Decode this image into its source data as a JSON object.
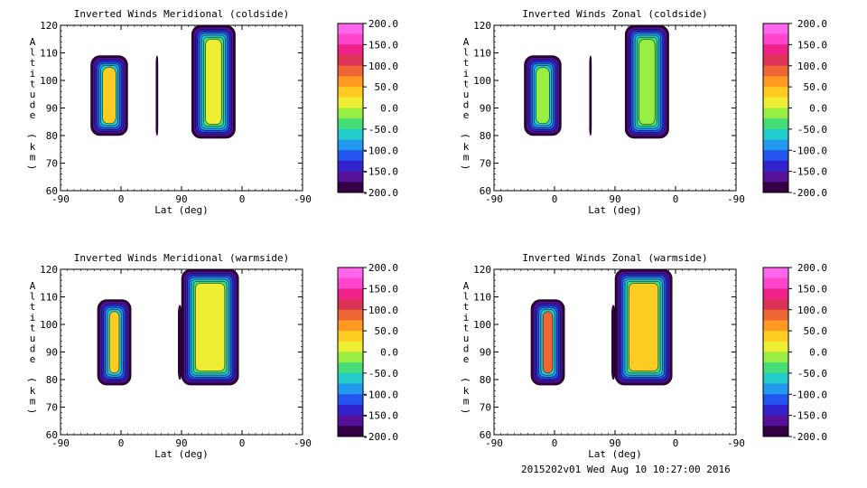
{
  "footer_text": "2015202v01 Wed Aug 10 10:27:00 2016",
  "colorbar": {
    "labels": [
      "200.0",
      "150.0",
      "100.0",
      "50.0",
      "0.0",
      "-50.0",
      "-100.0",
      "-150.0",
      "-200.0"
    ],
    "colors": [
      "#ff66ee",
      "#ff44cc",
      "#ee2288",
      "#dd3355",
      "#ee6633",
      "#ff9922",
      "#ffcc22",
      "#eeee33",
      "#99ee44",
      "#44dd77",
      "#22cccc",
      "#2299ee",
      "#2255ee",
      "#3322cc",
      "#551199",
      "#330044"
    ]
  },
  "chart_data": [
    {
      "type": "heatmap",
      "title": "Inverted Winds Meridional (coldside)",
      "xlabel": "Lat (deg)",
      "ylabel": "Altitude (km)",
      "xticks": [
        "-90",
        "0",
        "90",
        "0",
        "-90"
      ],
      "yticks": [
        "60",
        "70",
        "80",
        "90",
        "100",
        "110",
        "120"
      ],
      "ylim": [
        60,
        120
      ],
      "colorbar_range": [
        -200,
        200
      ],
      "regions": [
        {
          "x": [
            -45,
            10
          ],
          "y": [
            80,
            109
          ],
          "inner_value": 30
        },
        {
          "x": [
            52,
            55
          ],
          "y": [
            80,
            109
          ],
          "inner_value": -200
        },
        {
          "x": [
            105,
            170
          ],
          "y": [
            79,
            120
          ],
          "inner_value": 20
        }
      ]
    },
    {
      "type": "heatmap",
      "title": "Inverted Winds Zonal (coldside)",
      "xlabel": "Lat (deg)",
      "ylabel": "Altitude (km)",
      "xticks": [
        "-90",
        "0",
        "90",
        "0",
        "-90"
      ],
      "yticks": [
        "60",
        "70",
        "80",
        "90",
        "100",
        "110",
        "120"
      ],
      "ylim": [
        60,
        120
      ],
      "colorbar_range": [
        -200,
        200
      ],
      "regions": [
        {
          "x": [
            -45,
            10
          ],
          "y": [
            80,
            109
          ],
          "inner_value": -10
        },
        {
          "x": [
            52,
            55
          ],
          "y": [
            80,
            109
          ],
          "inner_value": -200
        },
        {
          "x": [
            105,
            170
          ],
          "y": [
            79,
            120
          ],
          "inner_value": -20
        }
      ]
    },
    {
      "type": "heatmap",
      "title": "Inverted Winds Meridional (warmside)",
      "xlabel": "Lat (deg)",
      "ylabel": "Altitude (km)",
      "xticks": [
        "-90",
        "0",
        "90",
        "0",
        "-90"
      ],
      "yticks": [
        "60",
        "70",
        "80",
        "90",
        "100",
        "110",
        "120"
      ],
      "ylim": [
        60,
        120
      ],
      "colorbar_range": [
        -200,
        200
      ],
      "regions": [
        {
          "x": [
            -35,
            15
          ],
          "y": [
            78,
            109
          ],
          "inner_value": 50
        },
        {
          "x": [
            85,
            90
          ],
          "y": [
            80,
            107
          ],
          "inner_value": -200
        },
        {
          "x": [
            90,
            175
          ],
          "y": [
            78,
            120
          ],
          "inner_value": 10
        }
      ]
    },
    {
      "type": "heatmap",
      "title": "Inverted Winds Zonal (warmside)",
      "xlabel": "Lat (deg)",
      "ylabel": "Altitude (km)",
      "xticks": [
        "-90",
        "0",
        "90",
        "0",
        "-90"
      ],
      "yticks": [
        "60",
        "70",
        "80",
        "90",
        "100",
        "110",
        "120"
      ],
      "ylim": [
        60,
        120
      ],
      "colorbar_range": [
        -200,
        200
      ],
      "regions": [
        {
          "x": [
            -35,
            15
          ],
          "y": [
            78,
            109
          ],
          "inner_value": 80
        },
        {
          "x": [
            85,
            90
          ],
          "y": [
            80,
            107
          ],
          "inner_value": -200
        },
        {
          "x": [
            90,
            175
          ],
          "y": [
            78,
            120
          ],
          "inner_value": 40
        }
      ]
    }
  ]
}
